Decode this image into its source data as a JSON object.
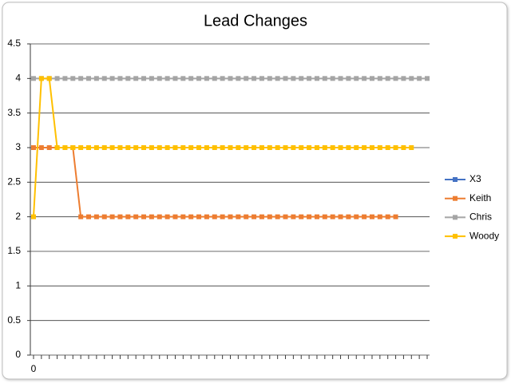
{
  "chart_data": {
    "type": "line",
    "title": "Lead Changes",
    "categories": [
      0,
      null,
      null,
      null,
      null,
      null,
      null,
      null,
      null,
      null,
      null,
      null,
      null,
      null,
      null,
      null,
      null,
      null,
      null,
      null,
      null,
      null,
      null,
      null,
      null,
      null,
      null,
      null,
      null,
      null,
      null,
      null,
      null,
      null,
      null,
      null,
      null,
      null,
      null,
      null,
      null,
      null,
      null,
      null,
      null,
      null,
      null,
      null,
      null,
      null,
      null
    ],
    "series": [
      {
        "name": "X3",
        "color": "#4472c4",
        "values": [
          null,
          null,
          null,
          null,
          null,
          null,
          null,
          null,
          null,
          null,
          null,
          null,
          null,
          null,
          null,
          null,
          null,
          null,
          null,
          null,
          null,
          null,
          null,
          null,
          null,
          null,
          null,
          null,
          null,
          null,
          null,
          null,
          null,
          null,
          null,
          null,
          null,
          null,
          null,
          null,
          null,
          null,
          null,
          null,
          null,
          null,
          null,
          null,
          null,
          null,
          null
        ]
      },
      {
        "name": "Keith",
        "color": "#ed7d31",
        "values": [
          3,
          3,
          3,
          3,
          3,
          3,
          2,
          2,
          2,
          2,
          2,
          2,
          2,
          2,
          2,
          2,
          2,
          2,
          2,
          2,
          2,
          2,
          2,
          2,
          2,
          2,
          2,
          2,
          2,
          2,
          2,
          2,
          2,
          2,
          2,
          2,
          2,
          2,
          2,
          2,
          2,
          2,
          2,
          2,
          2,
          2,
          2,
          null,
          null,
          null,
          null
        ]
      },
      {
        "name": "Chris",
        "color": "#a5a5a5",
        "values": [
          4,
          4,
          4,
          4,
          4,
          4,
          4,
          4,
          4,
          4,
          4,
          4,
          4,
          4,
          4,
          4,
          4,
          4,
          4,
          4,
          4,
          4,
          4,
          4,
          4,
          4,
          4,
          4,
          4,
          4,
          4,
          4,
          4,
          4,
          4,
          4,
          4,
          4,
          4,
          4,
          4,
          4,
          4,
          4,
          4,
          4,
          4,
          4,
          4,
          4,
          4
        ]
      },
      {
        "name": "Woody",
        "color": "#ffc000",
        "values": [
          2,
          4,
          4,
          3,
          3,
          3,
          3,
          3,
          3,
          3,
          3,
          3,
          3,
          3,
          3,
          3,
          3,
          3,
          3,
          3,
          3,
          3,
          3,
          3,
          3,
          3,
          3,
          3,
          3,
          3,
          3,
          3,
          3,
          3,
          3,
          3,
          3,
          3,
          3,
          3,
          3,
          3,
          3,
          3,
          3,
          3,
          3,
          3,
          3,
          null,
          null
        ]
      }
    ],
    "ylim": [
      0,
      4.5
    ],
    "yticks": [
      0,
      0.5,
      1,
      1.5,
      2,
      2.5,
      3,
      3.5,
      4,
      4.5
    ],
    "grid": true,
    "legend": "right"
  }
}
